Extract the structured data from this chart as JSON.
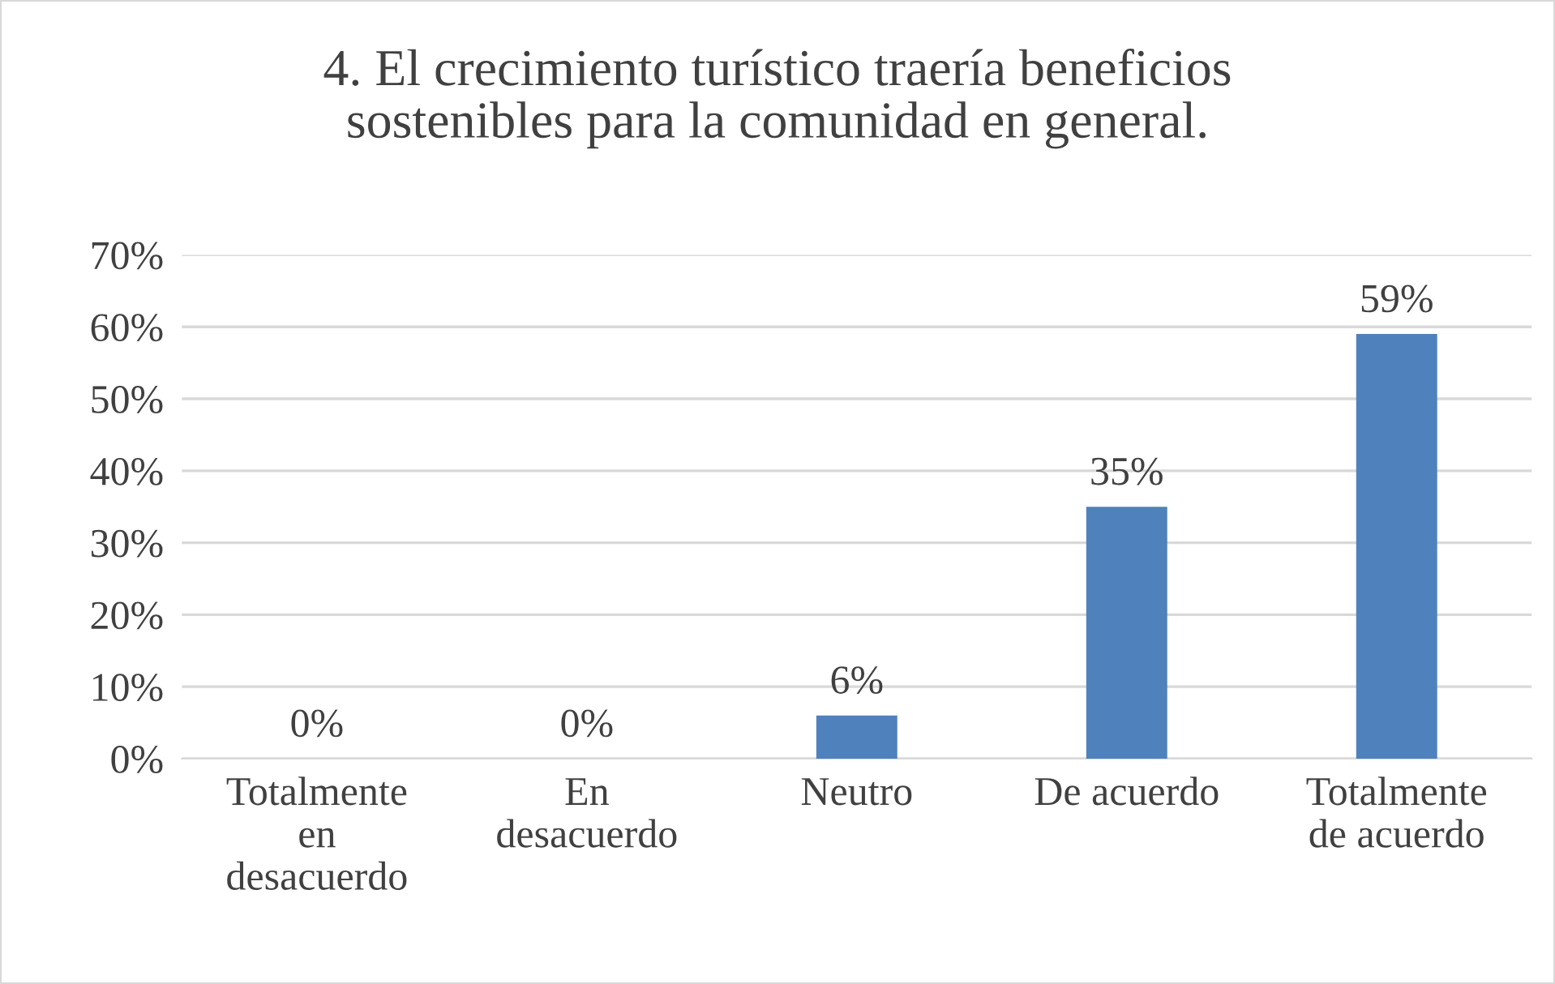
{
  "chart_data": {
    "type": "bar",
    "title": "4. El crecimiento turístico traería beneficios sostenibles para la comunidad en general.",
    "categories": [
      "Totalmente en desacuerdo",
      "En desacuerdo",
      "Neutro",
      "De acuerdo",
      "Totalmente de acuerdo"
    ],
    "values": [
      0,
      0,
      6,
      35,
      59
    ],
    "value_labels": [
      "0%",
      "0%",
      "6%",
      "35%",
      "59%"
    ],
    "color": "#4f81bd",
    "ylim": [
      0,
      70
    ],
    "yticks": [
      {
        "value": 0,
        "label": "0%"
      },
      {
        "value": 10,
        "label": "10%"
      },
      {
        "value": 20,
        "label": "20%"
      },
      {
        "value": 30,
        "label": "30%"
      },
      {
        "value": 40,
        "label": "40%"
      },
      {
        "value": 50,
        "label": "50%"
      },
      {
        "value": 60,
        "label": "60%"
      },
      {
        "value": 70,
        "label": "70%"
      }
    ],
    "grid": "y"
  }
}
